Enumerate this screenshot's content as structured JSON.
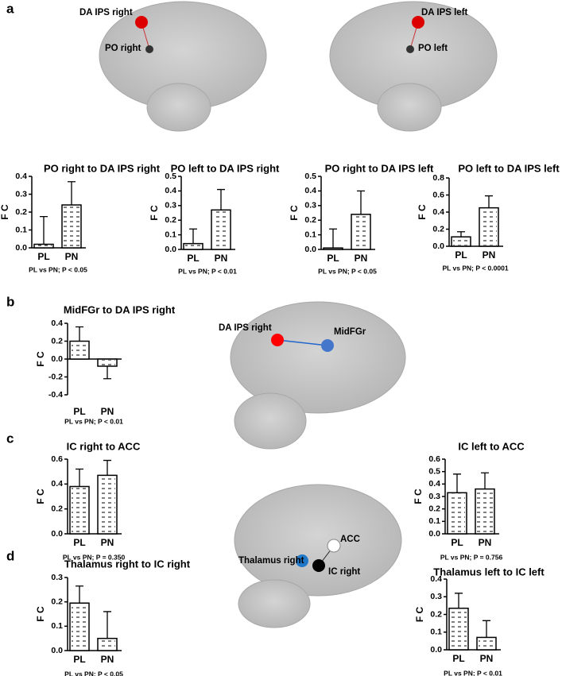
{
  "figure": {
    "panels": [
      "a",
      "b",
      "c",
      "d"
    ],
    "brain_labels": [
      "DA IPS right",
      "PO right",
      "DA IPS left",
      "PO left",
      "DA IPS right",
      "MidFGr",
      "ACC",
      "Thalamus right",
      "IC right"
    ]
  },
  "chart_data": [
    {
      "type": "bar",
      "title": "PO right to DA IPS right",
      "ylabel": "F C",
      "categories": [
        "PL",
        "PN"
      ],
      "values": [
        0.02,
        0.24
      ],
      "errors": [
        0.155,
        0.13
      ],
      "ylim": [
        0,
        0.4
      ],
      "yticks": [
        {
          "value": 0,
          "label": "0.0"
        },
        0.1,
        0.2,
        0.3,
        0.4
      ],
      "note": "PL vs PN; P < 0.05",
      "color": "#ffffff"
    },
    {
      "type": "bar",
      "title": "PO left to DA IPS right",
      "ylabel": "F C",
      "categories": [
        "PL",
        "PN"
      ],
      "values": [
        0.04,
        0.27
      ],
      "errors": [
        0.1,
        0.14
      ],
      "ylim": [
        0,
        0.5
      ],
      "yticks": [
        {
          "value": 0,
          "label": "0.0"
        },
        0.1,
        0.2,
        0.3,
        0.4,
        0.5
      ],
      "note": "PL vs PN; P < 0.01",
      "color": "#ffffff"
    },
    {
      "type": "bar",
      "title": "PO right to DA IPS left",
      "ylabel": "F C",
      "categories": [
        "PL",
        "PN"
      ],
      "values": [
        0.01,
        0.24
      ],
      "errors": [
        0.13,
        0.16
      ],
      "ylim": [
        0,
        0.5
      ],
      "yticks": [
        {
          "value": 0,
          "label": "0.0"
        },
        0.1,
        0.2,
        0.3,
        0.4,
        0.5
      ],
      "note": "PL vs PN; P < 0.05",
      "color": "#ffffff"
    },
    {
      "type": "bar",
      "title": "PO left to DA IPS left",
      "ylabel": "F C",
      "categories": [
        "PL",
        "PN"
      ],
      "values": [
        0.11,
        0.45
      ],
      "errors": [
        0.06,
        0.14
      ],
      "ylim": [
        0,
        0.8
      ],
      "yticks": [
        {
          "value": 0,
          "label": "0.0"
        },
        0.2,
        0.4,
        0.6,
        0.8
      ],
      "note": "PL vs PN; P < 0.0001",
      "color": "#ffffff"
    },
    {
      "type": "bar",
      "title": "MidFGr to DA IPS right",
      "ylabel": "F C",
      "categories": [
        "PL",
        "PN"
      ],
      "values": [
        0.2,
        -0.08
      ],
      "errors": [
        0.16,
        0.14
      ],
      "ylim": [
        -0.4,
        0.4
      ],
      "yticks": [
        -0.4,
        -0.2,
        {
          "value": 0,
          "label": "0.0"
        },
        0.2,
        0.4
      ],
      "note": "PL vs PN; P < 0.01",
      "color": "#ffffff"
    },
    {
      "type": "bar",
      "title": "IC right to ACC",
      "ylabel": "F C",
      "categories": [
        "PL",
        "PN"
      ],
      "values": [
        0.38,
        0.47
      ],
      "errors": [
        0.14,
        0.12
      ],
      "ylim": [
        0,
        0.6
      ],
      "yticks": [
        {
          "value": 0,
          "label": "0.0"
        },
        0.2,
        0.4,
        0.6
      ],
      "note": "PL vs PN; P = 0.350",
      "color": "#ffffff"
    },
    {
      "type": "bar",
      "title": "IC left to ACC",
      "ylabel": "F C",
      "categories": [
        "PL",
        "PN"
      ],
      "values": [
        0.33,
        0.36
      ],
      "errors": [
        0.15,
        0.13
      ],
      "ylim": [
        0,
        0.6
      ],
      "yticks": [
        {
          "value": 0,
          "label": "0.0"
        },
        0.1,
        0.2,
        0.3,
        0.4,
        0.5,
        0.6
      ],
      "note": "PL vs PN; P = 0.756",
      "color": "#ffffff"
    },
    {
      "type": "bar",
      "title": "Thalamus right to IC right",
      "ylabel": "F C",
      "categories": [
        "PL",
        "PN"
      ],
      "values": [
        0.195,
        0.05
      ],
      "errors": [
        0.07,
        0.11
      ],
      "ylim": [
        0,
        0.3
      ],
      "yticks": [
        {
          "value": 0,
          "label": "0.0"
        },
        0.1,
        0.2,
        0.3
      ],
      "note": "PL vs PN; P < 0.05",
      "color": "#ffffff"
    },
    {
      "type": "bar",
      "title": "Thalamus left to IC left",
      "ylabel": "F C",
      "categories": [
        "PL",
        "PN"
      ],
      "values": [
        0.235,
        0.07
      ],
      "errors": [
        0.085,
        0.095
      ],
      "ylim": [
        0,
        0.4
      ],
      "yticks": [
        {
          "value": 0,
          "label": "0.0"
        },
        0.1,
        0.2,
        0.3,
        0.4
      ],
      "note": "PL vs PN; P < 0.01",
      "color": "#ffffff"
    }
  ]
}
